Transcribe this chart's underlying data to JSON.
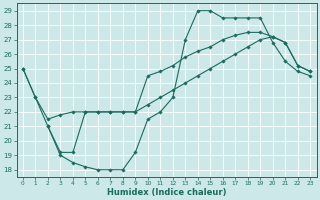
{
  "xlabel": "Humidex (Indice chaleur)",
  "bg_color": "#cce8e8",
  "line_color": "#1a6b60",
  "xlim": [
    -0.5,
    23.5
  ],
  "ylim": [
    17.5,
    29.5
  ],
  "yticks": [
    18,
    19,
    20,
    21,
    22,
    23,
    24,
    25,
    26,
    27,
    28,
    29
  ],
  "xticks": [
    0,
    1,
    2,
    3,
    4,
    5,
    6,
    7,
    8,
    9,
    10,
    11,
    12,
    13,
    14,
    15,
    16,
    17,
    18,
    19,
    20,
    21,
    22,
    23
  ],
  "series": [
    {
      "x": [
        0,
        1,
        2,
        3,
        4,
        5,
        6,
        7,
        8,
        9,
        10,
        11,
        12,
        13,
        14,
        15,
        16,
        17,
        18,
        19,
        20,
        21,
        22,
        23
      ],
      "y": [
        25,
        23,
        21,
        19,
        18.5,
        18.2,
        18,
        18,
        18,
        19.2,
        21.5,
        22,
        23,
        27,
        29,
        29,
        28.5,
        28.5,
        28.5,
        28.5,
        26.8,
        25.5,
        24.8,
        24.5
      ]
    },
    {
      "x": [
        2,
        3,
        4,
        5,
        6,
        7,
        8,
        9,
        10,
        11,
        12,
        13,
        14,
        15,
        16,
        17,
        18,
        19,
        20,
        21,
        22,
        23
      ],
      "y": [
        21,
        19.2,
        19.2,
        22,
        22,
        22,
        22,
        22,
        24.5,
        24.8,
        25.2,
        25.8,
        26.2,
        26.5,
        27,
        27.3,
        27.5,
        27.5,
        27.2,
        26.8,
        25.2,
        24.8
      ]
    },
    {
      "x": [
        0,
        1,
        2,
        3,
        4,
        5,
        6,
        7,
        8,
        9,
        10,
        11,
        12,
        13,
        14,
        15,
        16,
        17,
        18,
        19,
        20,
        21,
        22,
        23
      ],
      "y": [
        25,
        23,
        21.5,
        21.8,
        22,
        22,
        22,
        22,
        22,
        22,
        22.5,
        23,
        23.5,
        24,
        24.5,
        25,
        25.5,
        26,
        26.5,
        27,
        27.2,
        26.8,
        25.2,
        24.8
      ]
    }
  ]
}
